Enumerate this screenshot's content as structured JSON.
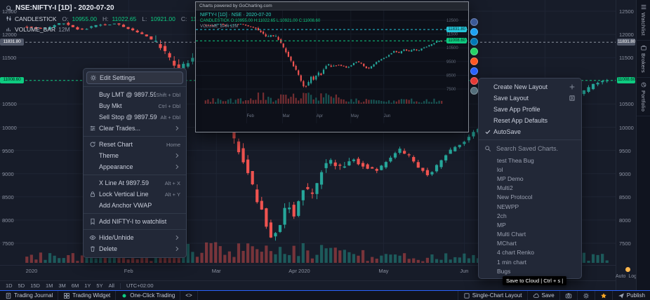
{
  "colors": {
    "up": "#26a69a",
    "down": "#ef5350",
    "accent": "#2962ff",
    "green": "#0ecb81",
    "orange_dot": "#ffb74d",
    "grid": "#1f2534"
  },
  "header": {
    "symbol_title": "NSE:NIFTY-I [1D] - 2020-07-20",
    "study_label": "CANDLESTICK",
    "ohlc": [
      {
        "label": "O:",
        "value": "10955.00"
      },
      {
        "label": "H:",
        "value": "11022.65"
      },
      {
        "label": "L:",
        "value": "10921.00"
      },
      {
        "label": "C:",
        "value": "11008.60"
      }
    ],
    "volume_label": "VOLUME_BAR",
    "volume_value": "12M"
  },
  "price_axis": {
    "min": 7500,
    "max": 12500,
    "ticks": [
      12500,
      12000,
      11500,
      10500,
      10000,
      9500,
      9000,
      8500,
      8000,
      7500
    ],
    "grid_ticks": [
      12500,
      12000,
      11500,
      11000,
      10500,
      10000,
      9500,
      9000,
      8500,
      8000,
      7500
    ],
    "tags": [
      {
        "value": "11831.80",
        "price": 11831.8,
        "kind": "gray"
      },
      {
        "value": "11008.60",
        "price": 11008.6,
        "kind": "green"
      }
    ],
    "auto_label": "Auto",
    "log_label": "Log"
  },
  "time_axis": {
    "labels": [
      {
        "label": "2020",
        "f": 0.012
      },
      {
        "label": "Feb",
        "f": 0.178
      },
      {
        "label": "Mar",
        "f": 0.328
      },
      {
        "label": "Apr 2020",
        "f": 0.47
      },
      {
        "label": "May",
        "f": 0.614
      },
      {
        "label": "Jun",
        "f": 0.752
      }
    ],
    "month_fracs": [
      0.178,
      0.328,
      0.47,
      0.614,
      0.752,
      0.89
    ]
  },
  "chart": {
    "type": "candlestick",
    "symbol": "NSE:NIFTY-I",
    "interval": "1D",
    "price_path_anchors": [
      [
        0,
        12180
      ],
      [
        0.04,
        12120
      ],
      [
        0.07,
        12260
      ],
      [
        0.1,
        12090
      ],
      [
        0.13,
        12200
      ],
      [
        0.16,
        12230
      ],
      [
        0.19,
        12080
      ],
      [
        0.22,
        11930
      ],
      [
        0.25,
        11560
      ],
      [
        0.27,
        11230
      ],
      [
        0.29,
        11450
      ],
      [
        0.31,
        11290
      ],
      [
        0.33,
        10820
      ],
      [
        0.35,
        10250
      ],
      [
        0.37,
        9590
      ],
      [
        0.39,
        8950
      ],
      [
        0.41,
        8270
      ],
      [
        0.43,
        7610
      ],
      [
        0.445,
        7850
      ],
      [
        0.455,
        8450
      ],
      [
        0.47,
        8100
      ],
      [
        0.485,
        8750
      ],
      [
        0.5,
        8550
      ],
      [
        0.515,
        9050
      ],
      [
        0.53,
        9280
      ],
      [
        0.55,
        9120
      ],
      [
        0.57,
        9300
      ],
      [
        0.59,
        9150
      ],
      [
        0.61,
        9060
      ],
      [
        0.63,
        9280
      ],
      [
        0.65,
        9520
      ],
      [
        0.67,
        9350
      ],
      [
        0.685,
        9100
      ],
      [
        0.7,
        8950
      ],
      [
        0.715,
        9180
      ],
      [
        0.73,
        9420
      ],
      [
        0.75,
        9620
      ],
      [
        0.77,
        9780
      ],
      [
        0.79,
        10030
      ],
      [
        0.81,
        10270
      ],
      [
        0.83,
        10120
      ],
      [
        0.85,
        10380
      ],
      [
        0.87,
        10220
      ],
      [
        0.89,
        10420
      ],
      [
        0.91,
        10280
      ],
      [
        0.93,
        10480
      ],
      [
        0.95,
        10620
      ],
      [
        0.97,
        10780
      ],
      [
        0.985,
        10920
      ],
      [
        1,
        11008
      ]
    ],
    "levels": [
      {
        "price": 11831.8,
        "color": "#8b91a0"
      },
      {
        "price": 11008.6,
        "color": "#0ecb81"
      }
    ]
  },
  "context_menu": {
    "items": [
      {
        "icon": "gear",
        "label": "Edit Settings",
        "highlight": true
      },
      {
        "divider": true
      },
      {
        "label": "Buy LMT @ 9897.59",
        "shortcut": "Shift + Dbl"
      },
      {
        "label": "Buy Mkt",
        "shortcut": "Ctrl + Dbl"
      },
      {
        "label": "Sell Stop @ 9897.59",
        "shortcut": "Alt + Dbl"
      },
      {
        "icon": "sliders",
        "label": "Clear Trades...",
        "submenu": true
      },
      {
        "divider": true
      },
      {
        "icon": "reset",
        "label": "Reset Chart",
        "shortcut": "Home"
      },
      {
        "label": "Theme",
        "submenu": true
      },
      {
        "label": "Appearance",
        "submenu": true
      },
      {
        "divider": true
      },
      {
        "label": "X Line At 9897.59",
        "shortcut": "Alt + X"
      },
      {
        "icon": "lock",
        "label": "Lock Vertical Line",
        "shortcut": "Alt + Y"
      },
      {
        "label": "Add Anchor VWAP"
      },
      {
        "divider": true
      },
      {
        "icon": "bookmark",
        "label": "Add NIFTY-I to watchlist"
      },
      {
        "divider": true
      },
      {
        "icon": "eye",
        "label": "Hide/Unhide",
        "submenu": true
      },
      {
        "icon": "trash",
        "label": "Delete",
        "submenu": true
      }
    ]
  },
  "layout_menu": {
    "items": [
      {
        "label": "Create New Layout",
        "right_icon": "plus"
      },
      {
        "label": "Save Layout",
        "right_icon": "save"
      },
      {
        "label": "Save App Profile"
      },
      {
        "label": "Reset App Defaults"
      },
      {
        "label": "AutoSave",
        "left_icon": "check"
      }
    ],
    "search_placeholder": "Search Saved Charts.",
    "saved_charts": [
      "test Thea Bug",
      "lol",
      "MP Demo",
      "Multi2",
      "New Protocol",
      "NEWPP",
      "2ch",
      "MP",
      "Multi Chart",
      "MChart",
      "4 chart Renko",
      "1 min chart",
      "Bugs"
    ]
  },
  "popup": {
    "title": "Charts powered by GoCharting.com",
    "symbol_line": "NIFTY-I [1D] · NSE · 2020-07-20",
    "ohlc_line": "CANDLESTICK  O:10955.00  H:11022.65  L:10921.00  C:11008.60",
    "volume_line": "VOLUME_BAR 12M",
    "axis_tags": [
      {
        "value": "11831.80",
        "price": 11831.8,
        "kind": "teal"
      },
      {
        "value": "11008.60",
        "price": 11008.6,
        "kind": "green"
      }
    ],
    "months": [
      "Feb",
      "Mar",
      "Apr",
      "May",
      "Jun"
    ],
    "month_fracs": [
      0.178,
      0.328,
      0.47,
      0.614,
      0.752
    ],
    "mini_ticks": [
      12500,
      11500,
      10500,
      9500,
      8500,
      7500
    ]
  },
  "share": {
    "buttons": [
      {
        "name": "facebook",
        "color": "#3b5998"
      },
      {
        "name": "twitter",
        "color": "#1da1f2"
      },
      {
        "name": "linkedin",
        "color": "#0077b5"
      },
      {
        "name": "whatsapp",
        "color": "#25d366"
      },
      {
        "name": "reddit",
        "color": "#ff5722"
      },
      {
        "name": "telegram",
        "color": "#2962ff"
      },
      {
        "name": "pinterest",
        "color": "#e53935"
      },
      {
        "name": "email",
        "color": "#546e7a"
      }
    ]
  },
  "sidebar": {
    "tabs": [
      {
        "label": "Watchlist",
        "icon": "list"
      },
      {
        "label": "Brokers",
        "icon": "briefcase"
      },
      {
        "label": "Portfolio",
        "icon": "pie"
      }
    ]
  },
  "timeframe_bar": {
    "intervals": [
      "1D",
      "5D",
      "15D",
      "1M",
      "3M",
      "6M",
      "1Y",
      "5Y",
      "All"
    ],
    "timezone": "UTC+02:00"
  },
  "bottom_bar": {
    "left": [
      {
        "label": "Trading Journal",
        "icon": "journal"
      },
      {
        "label": "Trading Widget",
        "icon": "widget"
      },
      {
        "label": "One-Click Trading",
        "icon": "dot",
        "color": "#0ecb81"
      },
      {
        "label": "<>"
      }
    ],
    "right": [
      {
        "label": "Single-Chart Layout",
        "icon": "grid"
      },
      {
        "label": "Save",
        "icon": "cloud"
      },
      {
        "icon": "camera"
      },
      {
        "icon": "gear"
      },
      {
        "icon": "star",
        "color": "#f9a825"
      },
      {
        "label": "Publish",
        "icon": "plane"
      }
    ]
  },
  "tooltip": {
    "text": "Save to Cloud | Ctrl + s |"
  }
}
